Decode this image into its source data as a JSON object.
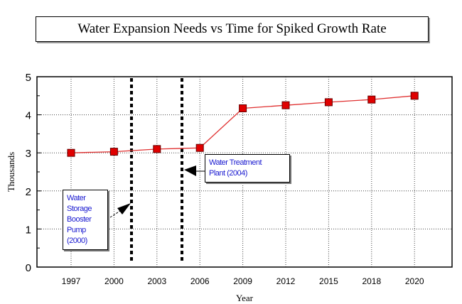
{
  "chart_data": {
    "type": "line",
    "title": "Water Expansion Needs vs Time for Spiked Growth Rate",
    "xlabel": "Year",
    "ylabel": "Thousands",
    "categories": [
      "1997",
      "2000",
      "2003",
      "2006",
      "2009",
      "2012",
      "2015",
      "2018",
      "2020"
    ],
    "values": [
      3.0,
      3.03,
      3.1,
      3.13,
      4.17,
      4.25,
      4.33,
      4.4,
      4.5
    ],
    "ylim": [
      0,
      5
    ],
    "yticks": [
      "0",
      "1",
      "2",
      "3",
      "4",
      "5"
    ],
    "grid": true,
    "line_color": "#e03030",
    "marker_color": "#e00000",
    "annotations": [
      {
        "label": "Water Storage Booster Pump (2000)",
        "lines": [
          "Water",
          "Storage",
          "Booster",
          "Pump",
          "(2000)"
        ]
      },
      {
        "label": "Water Treatment Plant (2004)",
        "lines": [
          "Water Treatment",
          "Plant (2004)"
        ]
      }
    ]
  }
}
